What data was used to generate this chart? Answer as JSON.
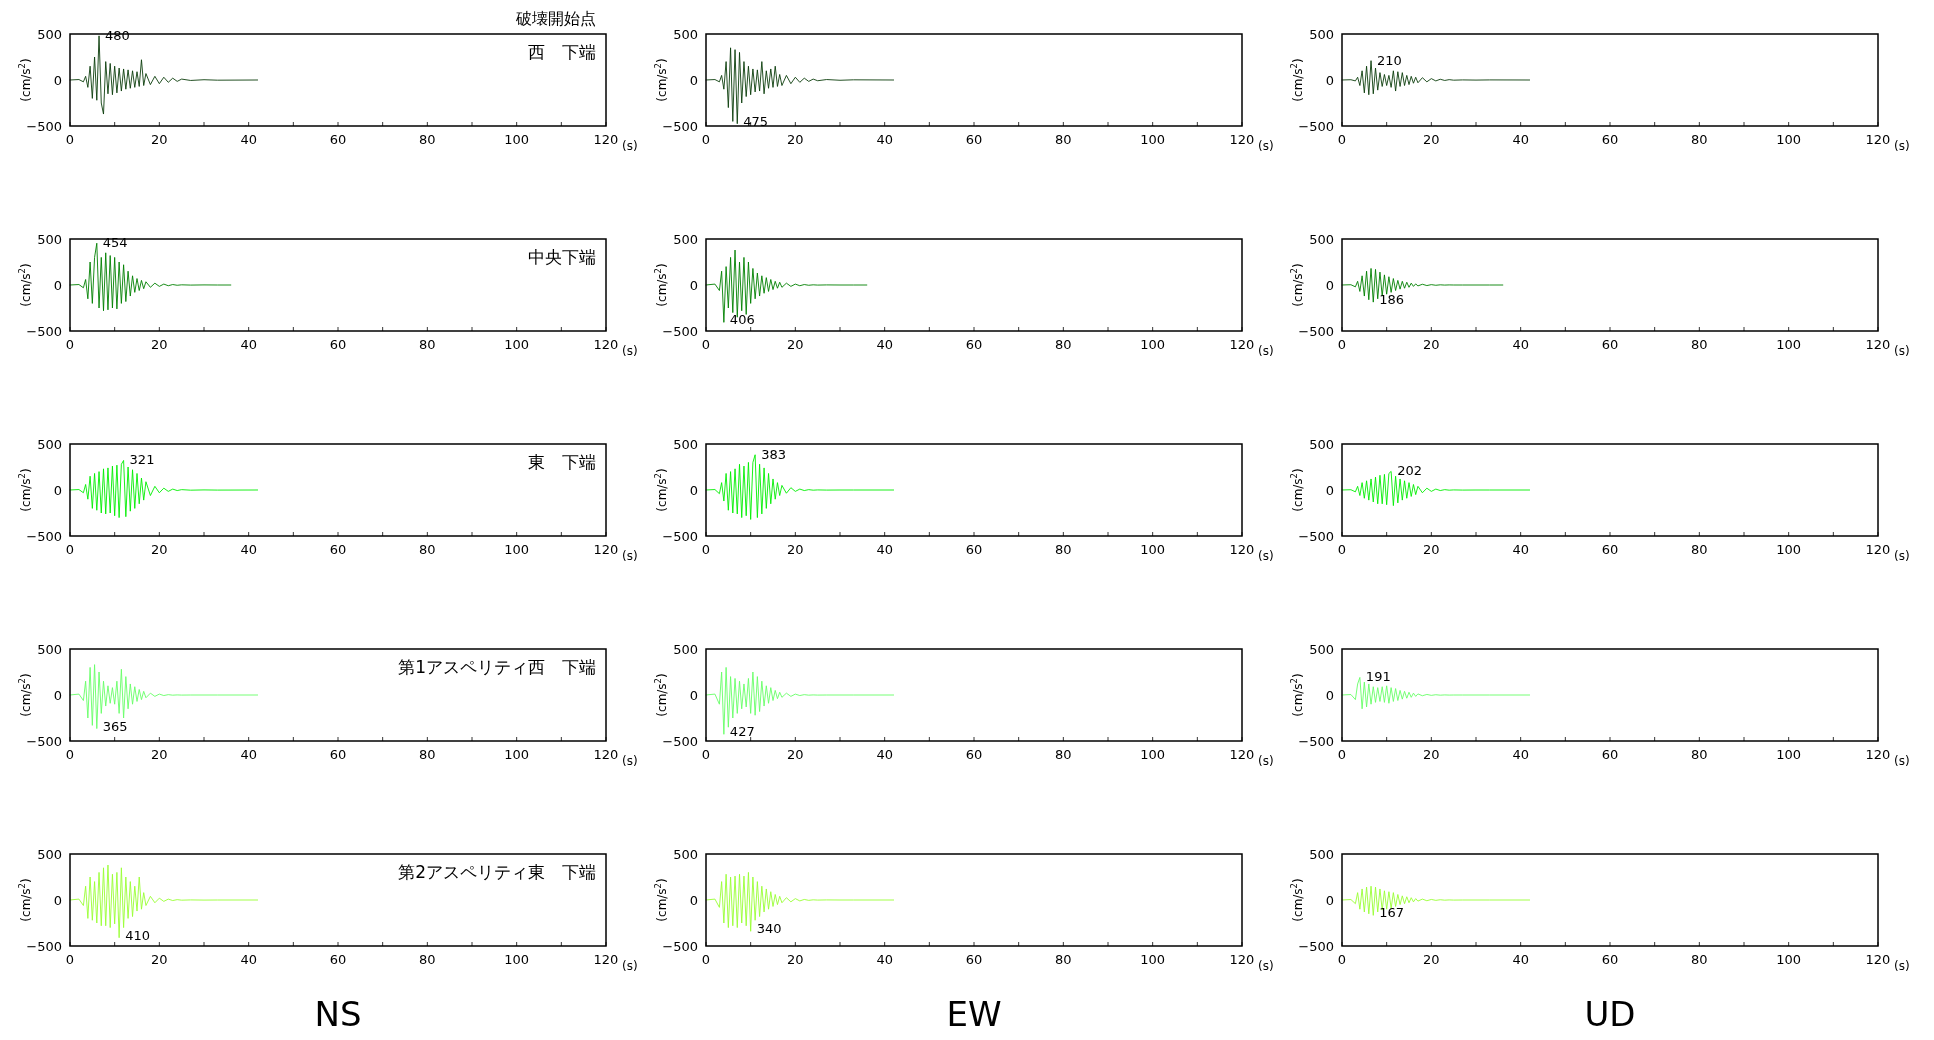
{
  "chart_data": [
    {
      "type": "line",
      "title": "破壊開始点",
      "subtitle": "西　下端",
      "ylabel": "(cm/s$^{2}$)",
      "xlabel": "(s)",
      "xlim": [
        0,
        120
      ],
      "ylim": [
        -500,
        500
      ],
      "yticks": [
        -500,
        0,
        500
      ],
      "xticks": [
        0,
        {
          "value": 10,
          "label": null
        },
        20,
        {
          "value": 30,
          "label": null
        },
        40,
        {
          "value": 50,
          "label": null
        },
        60,
        {
          "value": 70,
          "label": null
        },
        80,
        {
          "value": 90,
          "label": null
        },
        100,
        {
          "value": 110,
          "label": null
        },
        120
      ],
      "x": [
        0,
        2,
        3,
        3.5,
        4,
        4.5,
        5,
        5.5,
        6,
        6.5,
        7,
        7.5,
        8,
        8.5,
        9,
        9.5,
        10,
        10.5,
        11,
        11.5,
        12,
        12.5,
        13,
        13.5,
        14,
        14.5,
        15,
        15.5,
        16,
        16.5,
        17,
        18,
        19,
        20,
        21,
        22,
        23,
        24,
        25,
        27,
        30,
        33,
        42
      ],
      "series": [
        {
          "color": "#0b3d0b",
          "values": [
            0,
            5,
            -20,
            40,
            -80,
            150,
            -200,
            250,
            -220,
            480,
            -250,
            -370,
            200,
            -150,
            180,
            -160,
            150,
            -140,
            130,
            -120,
            120,
            -100,
            110,
            -90,
            100,
            -80,
            90,
            -70,
            220,
            -60,
            70,
            -50,
            40,
            -40,
            30,
            -25,
            20,
            -15,
            10,
            -5,
            3,
            -2,
            0
          ]
        }
      ],
      "annotations": [
        {
          "text": "480",
          "x": 6.5,
          "y": 480
        }
      ]
    },
    {
      "type": "line",
      "ylabel": "(cm/s$^{2}$)",
      "xlabel": "(s)",
      "xlim": [
        0,
        120
      ],
      "ylim": [
        -500,
        500
      ],
      "yticks": [
        -500,
        0,
        500
      ],
      "xticks": [
        0,
        {
          "value": 10,
          "label": null
        },
        20,
        {
          "value": 30,
          "label": null
        },
        40,
        {
          "value": 50,
          "label": null
        },
        60,
        {
          "value": 70,
          "label": null
        },
        80,
        {
          "value": 90,
          "label": null
        },
        100,
        {
          "value": 110,
          "label": null
        },
        120
      ],
      "x": [
        0,
        2,
        3,
        3.5,
        4,
        4.5,
        5,
        5.5,
        6,
        6.5,
        7,
        7.5,
        8,
        8.5,
        9,
        9.5,
        10,
        10.5,
        11,
        11.5,
        12,
        12.5,
        13,
        13.5,
        14,
        14.5,
        15,
        15.5,
        16,
        16.5,
        17,
        18,
        19,
        20,
        21,
        22,
        23,
        24,
        25,
        27,
        30,
        33,
        42
      ],
      "series": [
        {
          "color": "#0b3d0b",
          "values": [
            0,
            5,
            -20,
            50,
            -100,
            200,
            -300,
            350,
            -450,
            330,
            -475,
            300,
            -250,
            200,
            -180,
            150,
            -160,
            120,
            -130,
            110,
            -120,
            200,
            -150,
            100,
            -90,
            120,
            -80,
            150,
            -70,
            60,
            -60,
            50,
            -40,
            30,
            -25,
            20,
            -15,
            10,
            -8,
            5,
            -3,
            2,
            0
          ]
        }
      ],
      "annotations": [
        {
          "text": "475",
          "x": 7,
          "y": -475
        }
      ]
    },
    {
      "type": "line",
      "ylabel": "(cm/s$^{2}$)",
      "xlabel": "(s)",
      "xlim": [
        0,
        120
      ],
      "ylim": [
        -500,
        500
      ],
      "yticks": [
        -500,
        0,
        500
      ],
      "xticks": [
        0,
        {
          "value": 10,
          "label": null
        },
        20,
        {
          "value": 30,
          "label": null
        },
        40,
        {
          "value": 50,
          "label": null
        },
        60,
        {
          "value": 70,
          "label": null
        },
        80,
        {
          "value": 90,
          "label": null
        },
        100,
        {
          "value": 110,
          "label": null
        },
        120
      ],
      "x": [
        0,
        2,
        3,
        3.5,
        4,
        4.5,
        5,
        5.5,
        6,
        6.5,
        7,
        7.5,
        8,
        8.5,
        9,
        9.5,
        10,
        10.5,
        11,
        11.5,
        12,
        12.5,
        13,
        13.5,
        14,
        14.5,
        15,
        15.5,
        16,
        16.5,
        17,
        18,
        19,
        20,
        21,
        22,
        23,
        24,
        25,
        27,
        30,
        33,
        42
      ],
      "series": [
        {
          "color": "#0b3d0b",
          "values": [
            0,
            3,
            -10,
            30,
            -60,
            100,
            -140,
            150,
            -160,
            210,
            -150,
            130,
            -110,
            80,
            -70,
            60,
            -60,
            50,
            -80,
            100,
            -120,
            90,
            -70,
            80,
            -60,
            50,
            -50,
            40,
            -35,
            30,
            -30,
            25,
            -20,
            15,
            -10,
            8,
            -5,
            4,
            -2,
            1,
            -1,
            1,
            0
          ]
        }
      ],
      "annotations": [
        {
          "text": "210",
          "x": 6.5,
          "y": 210
        }
      ]
    },
    {
      "type": "line",
      "subtitle": "中央下端",
      "ylabel": "(cm/s$^{2}$)",
      "xlabel": "(s)",
      "xlim": [
        0,
        120
      ],
      "ylim": [
        -500,
        500
      ],
      "yticks": [
        -500,
        0,
        500
      ],
      "xticks": [
        0,
        {
          "value": 10,
          "label": null
        },
        20,
        {
          "value": 30,
          "label": null
        },
        40,
        {
          "value": 50,
          "label": null
        },
        60,
        {
          "value": 70,
          "label": null
        },
        80,
        {
          "value": 90,
          "label": null
        },
        100,
        {
          "value": 110,
          "label": null
        },
        120
      ],
      "x": [
        0,
        2,
        3,
        3.5,
        4,
        4.5,
        5,
        5.5,
        6,
        6.5,
        7,
        7.5,
        8,
        8.5,
        9,
        9.5,
        10,
        10.5,
        11,
        11.5,
        12,
        12.5,
        13,
        13.5,
        14,
        14.5,
        15,
        15.5,
        16,
        16.5,
        17,
        18,
        19,
        20,
        21,
        22,
        23,
        24,
        25,
        27,
        30,
        33,
        36
      ],
      "series": [
        {
          "color": "#008000",
          "values": [
            0,
            5,
            -30,
            60,
            -150,
            250,
            -200,
            300,
            454,
            -250,
            300,
            -280,
            350,
            -270,
            320,
            -250,
            300,
            -260,
            250,
            -200,
            220,
            -180,
            150,
            -120,
            100,
            -80,
            70,
            -60,
            50,
            -40,
            35,
            -25,
            20,
            -15,
            10,
            -8,
            5,
            -3,
            2,
            -1,
            1,
            0,
            0
          ]
        }
      ],
      "annotations": [
        {
          "text": "454",
          "x": 6,
          "y": 454
        }
      ]
    },
    {
      "type": "line",
      "ylabel": "(cm/s$^{2}$)",
      "xlabel": "(s)",
      "xlim": [
        0,
        120
      ],
      "ylim": [
        -500,
        500
      ],
      "yticks": [
        -500,
        0,
        500
      ],
      "xticks": [
        0,
        {
          "value": 10,
          "label": null
        },
        20,
        {
          "value": 30,
          "label": null
        },
        40,
        {
          "value": 50,
          "label": null
        },
        60,
        {
          "value": 70,
          "label": null
        },
        80,
        {
          "value": 90,
          "label": null
        },
        100,
        {
          "value": 110,
          "label": null
        },
        120
      ],
      "x": [
        0,
        2,
        3,
        3.5,
        4,
        4.5,
        5,
        5.5,
        6,
        6.5,
        7,
        7.5,
        8,
        8.5,
        9,
        9.5,
        10,
        10.5,
        11,
        11.5,
        12,
        12.5,
        13,
        13.5,
        14,
        14.5,
        15,
        15.5,
        16,
        16.5,
        17,
        18,
        19,
        20,
        21,
        22,
        23,
        24,
        25,
        27,
        30,
        33,
        36
      ],
      "series": [
        {
          "color": "#008000",
          "values": [
            0,
            10,
            -60,
            150,
            -406,
            200,
            -250,
            300,
            -300,
            380,
            -350,
            250,
            -280,
            300,
            -320,
            250,
            -200,
            180,
            -150,
            130,
            -120,
            100,
            -90,
            80,
            -70,
            60,
            -50,
            40,
            -35,
            30,
            -25,
            20,
            -15,
            10,
            -8,
            5,
            -3,
            2,
            -1,
            1,
            0,
            0,
            0
          ]
        }
      ],
      "annotations": [
        {
          "text": "406",
          "x": 4,
          "y": -406
        }
      ]
    },
    {
      "type": "line",
      "ylabel": "(cm/s$^{2}$)",
      "xlabel": "(s)",
      "xlim": [
        0,
        120
      ],
      "ylim": [
        -500,
        500
      ],
      "yticks": [
        -500,
        0,
        500
      ],
      "xticks": [
        0,
        {
          "value": 10,
          "label": null
        },
        20,
        {
          "value": 30,
          "label": null
        },
        40,
        {
          "value": 50,
          "label": null
        },
        60,
        {
          "value": 70,
          "label": null
        },
        80,
        {
          "value": 90,
          "label": null
        },
        100,
        {
          "value": 110,
          "label": null
        },
        120
      ],
      "x": [
        0,
        2,
        3,
        3.5,
        4,
        4.5,
        5,
        5.5,
        6,
        6.5,
        7,
        7.5,
        8,
        8.5,
        9,
        9.5,
        10,
        10.5,
        11,
        11.5,
        12,
        12.5,
        13,
        13.5,
        14,
        14.5,
        15,
        15.5,
        16,
        16.5,
        17,
        18,
        19,
        20,
        21,
        22,
        23,
        24,
        25,
        27,
        30,
        33,
        36
      ],
      "series": [
        {
          "color": "#008000",
          "values": [
            0,
            3,
            -20,
            40,
            -70,
            100,
            -120,
            150,
            -160,
            180,
            -186,
            170,
            -150,
            140,
            -120,
            110,
            -100,
            90,
            -80,
            70,
            -60,
            50,
            -45,
            40,
            -35,
            30,
            -25,
            20,
            -15,
            12,
            -10,
            8,
            -6,
            4,
            -3,
            2,
            -1,
            1,
            0,
            0,
            0,
            0,
            0
          ]
        }
      ],
      "annotations": [
        {
          "text": "186",
          "x": 7,
          "y": -186
        }
      ]
    },
    {
      "type": "line",
      "subtitle": "東　下端",
      "ylabel": "(cm/s$^{2}$)",
      "xlabel": "(s)",
      "xlim": [
        0,
        120
      ],
      "ylim": [
        -500,
        500
      ],
      "yticks": [
        -500,
        0,
        500
      ],
      "xticks": [
        0,
        {
          "value": 10,
          "label": null
        },
        20,
        {
          "value": 30,
          "label": null
        },
        40,
        {
          "value": 50,
          "label": null
        },
        60,
        {
          "value": 70,
          "label": null
        },
        80,
        {
          "value": 90,
          "label": null
        },
        100,
        {
          "value": 110,
          "label": null
        },
        120
      ],
      "x": [
        0,
        2,
        3,
        3.5,
        4,
        4.5,
        5,
        5.5,
        6,
        6.5,
        7,
        7.5,
        8,
        8.5,
        9,
        9.5,
        10,
        10.5,
        11,
        11.5,
        12,
        12.5,
        13,
        13.5,
        14,
        14.5,
        15,
        15.5,
        16,
        16.5,
        17,
        18,
        19,
        20,
        21,
        22,
        23,
        24,
        25,
        27,
        30,
        33,
        42
      ],
      "series": [
        {
          "color": "#00ee00",
          "values": [
            0,
            5,
            -30,
            60,
            -100,
            150,
            -200,
            180,
            -220,
            200,
            -250,
            230,
            -260,
            240,
            -250,
            260,
            -280,
            270,
            -300,
            280,
            321,
            -290,
            250,
            -230,
            220,
            -200,
            180,
            -150,
            130,
            -110,
            90,
            -60,
            40,
            -30,
            20,
            -15,
            10,
            -6,
            4,
            -2,
            1,
            -1,
            0
          ]
        }
      ],
      "annotations": [
        {
          "text": "321",
          "x": 12,
          "y": 321
        }
      ]
    },
    {
      "type": "line",
      "ylabel": "(cm/s$^{2}$)",
      "xlabel": "(s)",
      "xlim": [
        0,
        120
      ],
      "ylim": [
        -500,
        500
      ],
      "yticks": [
        -500,
        0,
        500
      ],
      "xticks": [
        0,
        {
          "value": 10,
          "label": null
        },
        20,
        {
          "value": 30,
          "label": null
        },
        40,
        {
          "value": 50,
          "label": null
        },
        60,
        {
          "value": 70,
          "label": null
        },
        80,
        {
          "value": 90,
          "label": null
        },
        100,
        {
          "value": 110,
          "label": null
        },
        120
      ],
      "x": [
        0,
        2,
        3,
        3.5,
        4,
        4.5,
        5,
        5.5,
        6,
        6.5,
        7,
        7.5,
        8,
        8.5,
        9,
        9.5,
        10,
        10.5,
        11,
        11.5,
        12,
        12.5,
        13,
        13.5,
        14,
        14.5,
        15,
        15.5,
        16,
        16.5,
        17,
        18,
        19,
        20,
        21,
        22,
        23,
        24,
        25,
        27,
        30,
        33,
        42
      ],
      "series": [
        {
          "color": "#00ee00",
          "values": [
            0,
            5,
            -40,
            80,
            -120,
            180,
            -220,
            200,
            -250,
            230,
            -260,
            280,
            -300,
            260,
            -280,
            300,
            -320,
            300,
            383,
            -300,
            280,
            -260,
            240,
            -200,
            180,
            -150,
            120,
            -100,
            80,
            -60,
            50,
            -35,
            25,
            -15,
            10,
            -6,
            4,
            -2,
            1,
            -1,
            0,
            0,
            0
          ]
        }
      ],
      "annotations": [
        {
          "text": "383",
          "x": 11,
          "y": 383
        }
      ]
    },
    {
      "type": "line",
      "ylabel": "(cm/s$^{2}$)",
      "xlabel": "(s)",
      "xlim": [
        0,
        120
      ],
      "ylim": [
        -500,
        500
      ],
      "yticks": [
        -500,
        0,
        500
      ],
      "xticks": [
        0,
        {
          "value": 10,
          "label": null
        },
        20,
        {
          "value": 30,
          "label": null
        },
        40,
        {
          "value": 50,
          "label": null
        },
        60,
        {
          "value": 70,
          "label": null
        },
        80,
        {
          "value": 90,
          "label": null
        },
        100,
        {
          "value": 110,
          "label": null
        },
        120
      ],
      "x": [
        0,
        2,
        3,
        3.5,
        4,
        4.5,
        5,
        5.5,
        6,
        6.5,
        7,
        7.5,
        8,
        8.5,
        9,
        9.5,
        10,
        10.5,
        11,
        11.5,
        12,
        12.5,
        13,
        13.5,
        14,
        14.5,
        15,
        15.5,
        16,
        16.5,
        17,
        18,
        19,
        20,
        21,
        22,
        23,
        24,
        25,
        27,
        30,
        33,
        42
      ],
      "series": [
        {
          "color": "#00ee00",
          "values": [
            0,
            3,
            -20,
            40,
            -60,
            80,
            -90,
            100,
            -110,
            120,
            -130,
            140,
            -150,
            160,
            -150,
            170,
            -160,
            180,
            202,
            -170,
            150,
            -140,
            120,
            -110,
            100,
            -90,
            80,
            -70,
            60,
            -50,
            40,
            -30,
            20,
            -15,
            10,
            -6,
            4,
            -2,
            1,
            -1,
            0,
            0,
            0
          ]
        }
      ],
      "annotations": [
        {
          "text": "202",
          "x": 11,
          "y": 202
        }
      ]
    },
    {
      "type": "line",
      "subtitle": "第1アスペリティ西　下端",
      "ylabel": "(cm/s$^{2}$)",
      "xlabel": "(s)",
      "xlim": [
        0,
        120
      ],
      "ylim": [
        -500,
        500
      ],
      "yticks": [
        -500,
        0,
        500
      ],
      "xticks": [
        0,
        {
          "value": 10,
          "label": null
        },
        20,
        {
          "value": 30,
          "label": null
        },
        40,
        {
          "value": 50,
          "label": null
        },
        60,
        {
          "value": 70,
          "label": null
        },
        80,
        {
          "value": 90,
          "label": null
        },
        100,
        {
          "value": 110,
          "label": null
        },
        120
      ],
      "x": [
        0,
        2,
        3,
        3.5,
        4,
        4.5,
        5,
        5.5,
        6,
        6.5,
        7,
        7.5,
        8,
        8.5,
        9,
        9.5,
        10,
        10.5,
        11,
        11.5,
        12,
        12.5,
        13,
        13.5,
        14,
        14.5,
        15,
        15.5,
        16,
        16.5,
        17,
        18,
        19,
        20,
        21,
        22,
        23,
        24,
        25,
        27,
        30,
        33,
        42
      ],
      "series": [
        {
          "color": "#66ff66",
          "values": [
            0,
            10,
            -60,
            150,
            -250,
            300,
            -330,
            330,
            -365,
            250,
            -200,
            150,
            -120,
            100,
            -90,
            80,
            -100,
            150,
            -200,
            280,
            -250,
            200,
            -150,
            120,
            -100,
            90,
            -70,
            60,
            -50,
            40,
            -30,
            20,
            -15,
            10,
            -6,
            4,
            -2,
            1,
            -1,
            0,
            0,
            0,
            0
          ]
        }
      ],
      "annotations": [
        {
          "text": "365",
          "x": 6,
          "y": -365
        }
      ]
    },
    {
      "type": "line",
      "ylabel": "(cm/s$^{2}$)",
      "xlabel": "(s)",
      "xlim": [
        0,
        120
      ],
      "ylim": [
        -500,
        500
      ],
      "yticks": [
        -500,
        0,
        500
      ],
      "xticks": [
        0,
        {
          "value": 10,
          "label": null
        },
        20,
        {
          "value": 30,
          "label": null
        },
        40,
        {
          "value": 50,
          "label": null
        },
        60,
        {
          "value": 70,
          "label": null
        },
        80,
        {
          "value": 90,
          "label": null
        },
        100,
        {
          "value": 110,
          "label": null
        },
        120
      ],
      "x": [
        0,
        2,
        3,
        3.5,
        4,
        4.5,
        5,
        5.5,
        6,
        6.5,
        7,
        7.5,
        8,
        8.5,
        9,
        9.5,
        10,
        10.5,
        11,
        11.5,
        12,
        12.5,
        13,
        13.5,
        14,
        14.5,
        15,
        15.5,
        16,
        16.5,
        17,
        18,
        19,
        20,
        21,
        22,
        23,
        24,
        25,
        27,
        30,
        33,
        42
      ],
      "series": [
        {
          "color": "#66ff66",
          "values": [
            0,
            10,
            -100,
            250,
            -427,
            300,
            -350,
            200,
            -250,
            180,
            -200,
            150,
            -150,
            120,
            -130,
            180,
            -200,
            250,
            -220,
            200,
            -180,
            150,
            -120,
            100,
            -90,
            80,
            -60,
            50,
            -40,
            30,
            -25,
            20,
            -15,
            10,
            -6,
            4,
            -2,
            1,
            -1,
            0,
            0,
            0,
            0
          ]
        }
      ],
      "annotations": [
        {
          "text": "427",
          "x": 4,
          "y": -427
        }
      ]
    },
    {
      "type": "line",
      "ylabel": "(cm/s$^{2}$)",
      "xlabel": "(s)",
      "xlim": [
        0,
        120
      ],
      "ylim": [
        -500,
        500
      ],
      "yticks": [
        -500,
        0,
        500
      ],
      "xticks": [
        0,
        {
          "value": 10,
          "label": null
        },
        20,
        {
          "value": 30,
          "label": null
        },
        40,
        {
          "value": 50,
          "label": null
        },
        60,
        {
          "value": 70,
          "label": null
        },
        80,
        {
          "value": 90,
          "label": null
        },
        100,
        {
          "value": 110,
          "label": null
        },
        120
      ],
      "x": [
        0,
        2,
        3,
        3.5,
        4,
        4.5,
        5,
        5.5,
        6,
        6.5,
        7,
        7.5,
        8,
        8.5,
        9,
        9.5,
        10,
        10.5,
        11,
        11.5,
        12,
        12.5,
        13,
        13.5,
        14,
        14.5,
        15,
        15.5,
        16,
        16.5,
        17,
        18,
        19,
        20,
        21,
        22,
        23,
        24,
        25,
        27,
        30,
        33,
        42
      ],
      "series": [
        {
          "color": "#66ff66",
          "values": [
            0,
            5,
            -50,
            120,
            191,
            -150,
            140,
            -130,
            120,
            -100,
            90,
            -80,
            80,
            -70,
            90,
            -80,
            100,
            -90,
            80,
            -70,
            70,
            -60,
            50,
            -45,
            40,
            -35,
            30,
            -25,
            20,
            -15,
            12,
            -8,
            6,
            -4,
            3,
            -2,
            1,
            -1,
            0,
            0,
            0,
            0,
            0
          ]
        }
      ],
      "annotations": [
        {
          "text": "191",
          "x": 4,
          "y": 191
        }
      ]
    },
    {
      "type": "line",
      "subtitle": "第2アスペリティ東　下端",
      "ylabel": "(cm/s$^{2}$)",
      "xlabel": "(s)",
      "xlim": [
        0,
        120
      ],
      "ylim": [
        -500,
        500
      ],
      "yticks": [
        -500,
        0,
        500
      ],
      "xticks": [
        0,
        {
          "value": 10,
          "label": null
        },
        20,
        {
          "value": 30,
          "label": null
        },
        40,
        {
          "value": 50,
          "label": null
        },
        60,
        {
          "value": 70,
          "label": null
        },
        80,
        {
          "value": 90,
          "label": null
        },
        100,
        {
          "value": 110,
          "label": null
        },
        120
      ],
      "x": [
        0,
        2,
        3,
        3.5,
        4,
        4.5,
        5,
        5.5,
        6,
        6.5,
        7,
        7.5,
        8,
        8.5,
        9,
        9.5,
        10,
        10.5,
        11,
        11.5,
        12,
        12.5,
        13,
        13.5,
        14,
        14.5,
        15,
        15.5,
        16,
        16.5,
        17,
        18,
        19,
        20,
        21,
        22,
        23,
        24,
        25,
        27,
        30,
        33,
        42
      ],
      "series": [
        {
          "color": "#99ff33",
          "values": [
            0,
            10,
            -60,
            150,
            -200,
            250,
            -220,
            200,
            -250,
            300,
            -280,
            350,
            -280,
            380,
            -300,
            280,
            -260,
            300,
            -410,
            350,
            -300,
            250,
            -200,
            200,
            -180,
            150,
            -120,
            250,
            -100,
            80,
            -60,
            40,
            -30,
            20,
            -15,
            10,
            -6,
            4,
            -2,
            1,
            -1,
            0,
            0
          ]
        }
      ],
      "annotations": [
        {
          "text": "410",
          "x": 11,
          "y": -410
        },
        "NS"
      ]
    },
    {
      "type": "line",
      "ylabel": "(cm/s$^{2}$)",
      "xlabel": "(s)",
      "xlim": [
        0,
        120
      ],
      "ylim": [
        -500,
        500
      ],
      "yticks": [
        -500,
        0,
        500
      ],
      "xticks": [
        0,
        {
          "value": 10,
          "label": null
        },
        20,
        {
          "value": 30,
          "label": null
        },
        40,
        {
          "value": 50,
          "label": null
        },
        60,
        {
          "value": 70,
          "label": null
        },
        80,
        {
          "value": 90,
          "label": null
        },
        100,
        {
          "value": 110,
          "label": null
        },
        120
      ],
      "x": [
        0,
        2,
        3,
        3.5,
        4,
        4.5,
        5,
        5.5,
        6,
        6.5,
        7,
        7.5,
        8,
        8.5,
        9,
        9.5,
        10,
        10.5,
        11,
        11.5,
        12,
        12.5,
        13,
        13.5,
        14,
        14.5,
        15,
        15.5,
        16,
        16.5,
        17,
        18,
        19,
        20,
        21,
        22,
        23,
        24,
        25,
        27,
        30,
        33,
        42
      ],
      "series": [
        {
          "color": "#99ff33",
          "values": [
            0,
            10,
            -80,
            200,
            -250,
            280,
            -300,
            250,
            -280,
            260,
            -300,
            280,
            -250,
            260,
            -280,
            300,
            -340,
            250,
            -220,
            200,
            -180,
            150,
            -130,
            120,
            -100,
            90,
            -70,
            60,
            -50,
            40,
            -30,
            25,
            -20,
            15,
            -10,
            6,
            -4,
            2,
            -1,
            1,
            0,
            0,
            0
          ]
        }
      ],
      "annotations": [
        {
          "text": "340",
          "x": 10,
          "y": -340
        },
        "EW"
      ]
    },
    {
      "type": "line",
      "ylabel": "(cm/s$^{2}$)",
      "xlabel": "(s)",
      "xlim": [
        0,
        120
      ],
      "ylim": [
        -500,
        500
      ],
      "yticks": [
        -500,
        0,
        500
      ],
      "xticks": [
        0,
        {
          "value": 10,
          "label": null
        },
        20,
        {
          "value": 30,
          "label": null
        },
        40,
        {
          "value": 50,
          "label": null
        },
        60,
        {
          "value": 70,
          "label": null
        },
        80,
        {
          "value": 90,
          "label": null
        },
        100,
        {
          "value": 110,
          "label": null
        },
        120
      ],
      "x": [
        0,
        2,
        3,
        3.5,
        4,
        4.5,
        5,
        5.5,
        6,
        6.5,
        7,
        7.5,
        8,
        8.5,
        9,
        9.5,
        10,
        10.5,
        11,
        11.5,
        12,
        12.5,
        13,
        13.5,
        14,
        14.5,
        15,
        15.5,
        16,
        16.5,
        17,
        18,
        19,
        20,
        21,
        22,
        23,
        24,
        25,
        27,
        30,
        33,
        42
      ],
      "series": [
        {
          "color": "#99ff33",
          "values": [
            0,
            5,
            -40,
            80,
            -100,
            120,
            -130,
            140,
            -150,
            150,
            -167,
            140,
            -130,
            120,
            -110,
            100,
            -100,
            90,
            -90,
            80,
            -70,
            60,
            -50,
            45,
            -40,
            35,
            -30,
            25,
            -20,
            15,
            -12,
            10,
            -8,
            6,
            -4,
            3,
            -2,
            1,
            -1,
            0,
            0,
            0,
            0
          ]
        }
      ],
      "annotations": [
        {
          "text": "167",
          "x": 7,
          "y": -167
        },
        "UD"
      ]
    }
  ]
}
